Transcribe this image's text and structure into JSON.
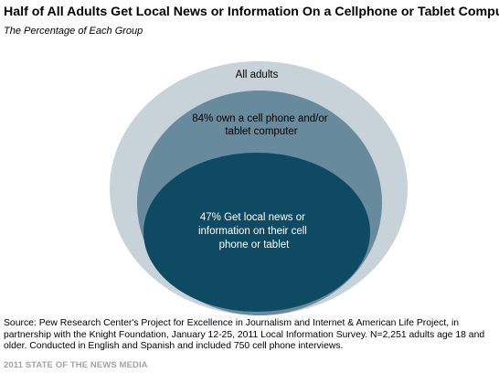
{
  "header": {
    "title": "Half of All Adults Get Local News or Information On a Cellphone or Tablet Computer",
    "subtitle": "The Percentage of Each Group"
  },
  "diagram": {
    "outer": {
      "label": "All adults",
      "color": "#c8d3d9"
    },
    "middle": {
      "label_lines": [
        "84% own a cell phone and/or",
        "tablet computer"
      ],
      "color": "#678a9d"
    },
    "inner": {
      "label_lines": [
        "47% Get local news or",
        "information on their cell",
        "phone or tablet"
      ],
      "color": "#0f4a63"
    }
  },
  "footer": {
    "source": "Source: Pew Research Center's Project for Excellence in Journalism and Internet & American Life Project, in partnership with the Knight Foundation, January 12-25, 2011 Local Information Survey. N=2,251 adults age 18 and older. Conducted in English and Spanish and included 750 cell phone interviews.",
    "credit": "2011 STATE OF THE NEWS MEDIA"
  }
}
